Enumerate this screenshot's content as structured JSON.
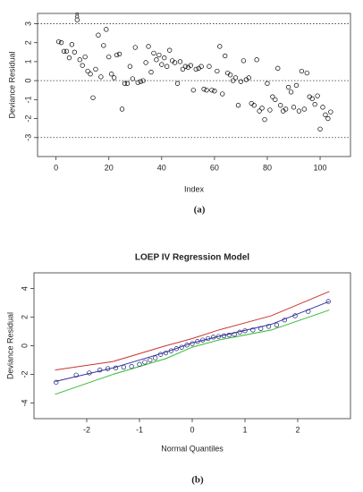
{
  "chart_data": [
    {
      "type": "scatter",
      "x_label": "Index",
      "y_label": "Deviance Residual",
      "caption": "(a)",
      "color": "#000000",
      "x": [
        1,
        2,
        3,
        4,
        5,
        6,
        7,
        8,
        9,
        10,
        11,
        12,
        13,
        14,
        15,
        16,
        17,
        18,
        19,
        20,
        21,
        22,
        23,
        24,
        25,
        26,
        27,
        28,
        29,
        30,
        31,
        32,
        33,
        34,
        35,
        36,
        37,
        38,
        39,
        40,
        41,
        42,
        43,
        44,
        45,
        46,
        47,
        48,
        49,
        50,
        51,
        52,
        53,
        54,
        55,
        56,
        57,
        58,
        59,
        60,
        61,
        62,
        63,
        64,
        65,
        66,
        67,
        68,
        69,
        70,
        71,
        72,
        73,
        74,
        75,
        76,
        77,
        78,
        79,
        80,
        81,
        82,
        83,
        84,
        85,
        86,
        87,
        88,
        89,
        90,
        91,
        92,
        93,
        94,
        95,
        96,
        97,
        98,
        99,
        100,
        101,
        102,
        103,
        104
      ],
      "values": [
        2.05,
        2.0,
        1.55,
        1.55,
        1.2,
        1.9,
        1.5,
        3.2,
        1.1,
        0.8,
        1.25,
        0.5,
        0.35,
        -0.9,
        0.6,
        2.4,
        0.2,
        1.85,
        2.7,
        1.25,
        0.35,
        0.15,
        1.35,
        1.4,
        -1.5,
        -0.15,
        -0.15,
        0.75,
        0.1,
        1.75,
        -0.1,
        -0.05,
        0.0,
        0.95,
        1.8,
        0.45,
        1.45,
        1.1,
        1.35,
        0.85,
        1.2,
        0.75,
        1.6,
        1.05,
        0.95,
        -0.15,
        1.0,
        0.6,
        0.75,
        0.7,
        0.8,
        -0.5,
        0.6,
        0.65,
        0.75,
        -0.45,
        -0.5,
        0.75,
        -0.5,
        -0.55,
        0.5,
        1.8,
        -0.7,
        1.3,
        0.4,
        0.3,
        0.0,
        0.15,
        -1.3,
        -0.05,
        1.05,
        0.05,
        0.15,
        -1.2,
        -1.3,
        1.1,
        -1.6,
        -1.45,
        -2.05,
        -0.15,
        -1.55,
        -0.85,
        -1.0,
        0.65,
        -1.3,
        -1.6,
        -1.5,
        -0.35,
        -0.6,
        -1.4,
        -0.25,
        -1.6,
        0.5,
        -1.5,
        0.4,
        -0.85,
        -0.95,
        -1.25,
        -0.8,
        -2.55,
        -1.4,
        -1.8,
        -2.0,
        -1.65
      ],
      "xlim": [
        -7,
        111.5
      ],
      "ylim": [
        -4,
        3.54
      ],
      "xticks": [
        0,
        20,
        40,
        60,
        80,
        100
      ],
      "yticks": [
        -3,
        -2,
        -1,
        0,
        1,
        2,
        3
      ],
      "hlines": [
        3,
        0,
        -3
      ],
      "annotations": [
        {
          "text": "8",
          "x": 8,
          "y": 3.2
        }
      ]
    },
    {
      "type": "scatter",
      "title": "LOEP IV Regression Model",
      "x_label": "Normal Quantiles",
      "y_label": "Deviance Residual",
      "caption": "(b)",
      "color": "#1a1a6e",
      "x": [
        -2.58,
        -2.2,
        -1.95,
        -1.75,
        -1.6,
        -1.45,
        -1.3,
        -1.15,
        -1.0,
        -0.9,
        -0.8,
        -0.7,
        -0.6,
        -0.5,
        -0.4,
        -0.3,
        -0.2,
        -0.1,
        0,
        0.1,
        0.2,
        0.3,
        0.4,
        0.5,
        0.6,
        0.7,
        0.8,
        0.9,
        1.0,
        1.15,
        1.3,
        1.45,
        1.6,
        1.75,
        1.95,
        2.2,
        2.58
      ],
      "values": [
        -2.55,
        -2.05,
        -1.9,
        -1.7,
        -1.6,
        -1.55,
        -1.5,
        -1.45,
        -1.3,
        -1.15,
        -1.0,
        -0.85,
        -0.6,
        -0.5,
        -0.35,
        -0.2,
        -0.1,
        0.05,
        0.15,
        0.3,
        0.4,
        0.5,
        0.6,
        0.65,
        0.7,
        0.75,
        0.8,
        0.95,
        1.05,
        1.1,
        1.2,
        1.35,
        1.45,
        1.8,
        2.1,
        2.4,
        3.1
      ],
      "series": [
        {
          "color": "#3333aa",
          "x": [
            -2.6,
            -1.5,
            -0.5,
            0,
            0.5,
            1.5,
            2.6
          ],
          "values": [
            -2.5,
            -1.55,
            -0.45,
            0.2,
            0.65,
            1.5,
            3.1
          ]
        },
        {
          "color": "#cc3333",
          "x": [
            -2.6,
            -1.5,
            -0.5,
            0,
            0.5,
            1.5,
            2.6
          ],
          "values": [
            -1.7,
            -1.1,
            0.0,
            0.5,
            1.1,
            2.1,
            3.8
          ]
        },
        {
          "color": "#33bb33",
          "x": [
            -2.6,
            -1.5,
            -0.5,
            0,
            0.5,
            1.5,
            2.6
          ],
          "values": [
            -3.4,
            -2.0,
            -0.9,
            -0.1,
            0.4,
            1.1,
            2.5
          ]
        }
      ],
      "xlim": [
        -3,
        3
      ],
      "ylim": [
        -5.1,
        5.1
      ],
      "xticks": [
        -2,
        -1,
        0,
        1,
        2
      ],
      "yticks": [
        -4,
        -2,
        0,
        2,
        4
      ]
    }
  ]
}
